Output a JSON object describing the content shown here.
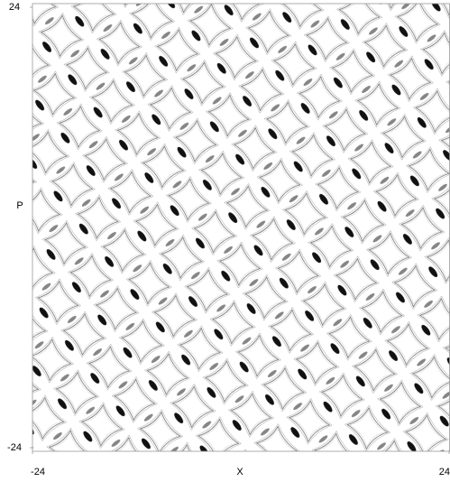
{
  "chart_data": {
    "type": "scatter",
    "x_label": "X",
    "y_label": "P",
    "xlim": [
      -24,
      24
    ],
    "ylim": [
      -24,
      24
    ],
    "xticks": [
      -24,
      24
    ],
    "yticks": [
      -24,
      24
    ]
  }
}
